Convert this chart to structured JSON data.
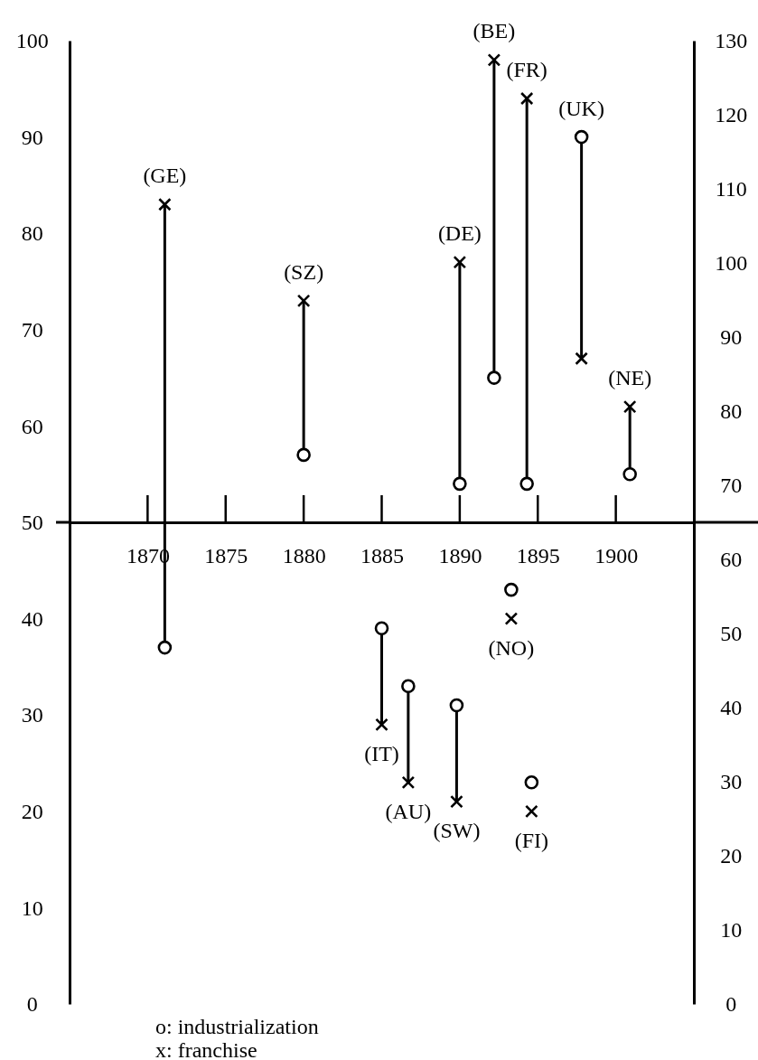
{
  "chart_data": {
    "type": "scatter",
    "xlim": [
      1865,
      1905
    ],
    "xticks": [
      1870,
      1875,
      1880,
      1885,
      1890,
      1895,
      1900
    ],
    "ylim": [
      0,
      100
    ],
    "yticks": [
      0,
      10,
      20,
      30,
      40,
      50,
      60,
      70,
      80,
      90,
      100
    ],
    "y2lim": [
      0,
      130
    ],
    "y2ticks": [
      0,
      10,
      20,
      30,
      40,
      50,
      60,
      70,
      80,
      90,
      100,
      110,
      120,
      130
    ],
    "grid": false,
    "series": [
      {
        "marker": "circle",
        "color": "#000000",
        "x": [
          1871.1,
          1880,
          1890,
          1892.2,
          1894.3,
          1897.8,
          1900.9,
          1885,
          1886.7,
          1889.8,
          1893.3,
          1894.6
        ],
        "values": [
          37,
          57,
          54,
          65,
          54,
          90,
          55,
          39,
          33,
          31,
          43,
          23
        ]
      },
      {
        "marker": "cross",
        "color": "#000000",
        "x": [
          1871.1,
          1880,
          1890,
          1892.2,
          1894.3,
          1897.8,
          1900.9,
          1885,
          1886.7,
          1889.8,
          1893.3,
          1894.6
        ],
        "values": [
          83,
          73,
          77,
          98,
          94,
          67,
          62,
          29,
          23,
          21,
          40,
          20
        ]
      },
      {
        "type": "line",
        "color": "#000000",
        "x": [
          1871.1,
          1871.1
        ],
        "values": [
          37,
          83
        ]
      },
      {
        "type": "line",
        "color": "#000000",
        "x": [
          1880,
          1880
        ],
        "values": [
          57,
          73
        ]
      },
      {
        "type": "line",
        "color": "#000000",
        "x": [
          1890,
          1890
        ],
        "values": [
          54,
          77
        ]
      },
      {
        "type": "line",
        "color": "#000000",
        "x": [
          1892.2,
          1892.2
        ],
        "values": [
          65,
          98
        ]
      },
      {
        "type": "line",
        "color": "#000000",
        "x": [
          1894.3,
          1894.3
        ],
        "values": [
          54,
          94
        ]
      },
      {
        "type": "line",
        "color": "#000000",
        "x": [
          1897.8,
          1897.8
        ],
        "values": [
          67,
          90
        ]
      },
      {
        "type": "line",
        "color": "#000000",
        "x": [
          1900.9,
          1900.9
        ],
        "values": [
          55,
          62
        ]
      },
      {
        "type": "line",
        "color": "#000000",
        "x": [
          1885,
          1885
        ],
        "values": [
          29,
          39
        ]
      },
      {
        "type": "line",
        "color": "#000000",
        "x": [
          1886.7,
          1886.7
        ],
        "values": [
          23,
          33
        ]
      },
      {
        "type": "line",
        "color": "#000000",
        "x": [
          1889.8,
          1889.8
        ],
        "values": [
          21,
          31
        ]
      }
    ],
    "annotations": [
      {
        "text": "(GE)",
        "x": 1871.1,
        "y": 83
      },
      {
        "text": "(SZ)",
        "x": 1880,
        "y": 73
      },
      {
        "text": "(DE)",
        "x": 1890,
        "y": 77
      },
      {
        "text": "(BE)",
        "x": 1892.2,
        "y": 98
      },
      {
        "text": "(FR)",
        "x": 1894.3,
        "y": 94
      },
      {
        "text": "(UK)",
        "x": 1897.8,
        "y": 90
      },
      {
        "text": "(NE)",
        "x": 1900.9,
        "y": 62
      },
      {
        "text": "(IT)",
        "x": 1885,
        "y": 29
      },
      {
        "text": "(AU)",
        "x": 1886.7,
        "y": 23
      },
      {
        "text": "(SW)",
        "x": 1889.8,
        "y": 21
      },
      {
        "text": "(NO)",
        "x": 1893.3,
        "y": 40
      },
      {
        "text": "(FI)",
        "x": 1894.6,
        "y": 20
      },
      "o: industrialization",
      "x: franchise"
    ]
  }
}
